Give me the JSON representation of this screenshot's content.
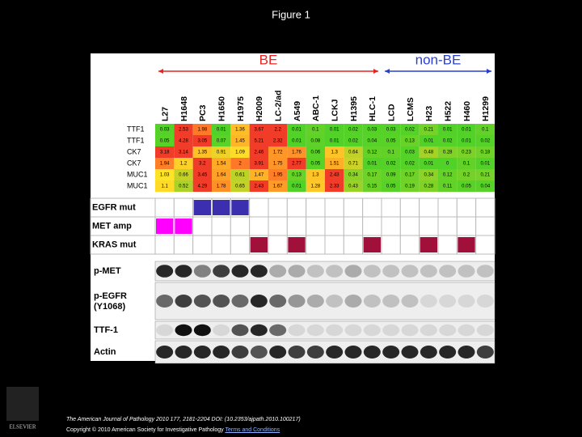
{
  "header": {
    "title": "Figure 1"
  },
  "figure": {
    "groups": [
      {
        "label": "BE",
        "color": "#e8231f",
        "from": 0,
        "to": 11
      },
      {
        "label": "non-BE",
        "color": "#2a3fd0",
        "from": 12,
        "to": 17
      }
    ],
    "columns": [
      "L27",
      "H1648",
      "PC3",
      "H1650",
      "H1975",
      "H2009",
      "LC-2/ad",
      "A549",
      "ABC-1",
      "LCKJ",
      "H1395",
      "HLC-1",
      "LCD",
      "LCMS",
      "H23",
      "H522",
      "H460",
      "H1299"
    ],
    "heatmap": [
      {
        "label": "TTF1",
        "values": [
          0.03,
          2.53,
          1.98,
          0.01,
          1.36,
          3.67,
          2.2,
          0.01,
          0.1,
          0.01,
          0.02,
          0.03,
          0.03,
          0.02,
          0.21,
          0.01,
          0.01,
          0.1
        ]
      },
      {
        "label": "TTF1",
        "values": [
          0.05,
          4.28,
          3.05,
          0.07,
          1.45,
          5.21,
          2.32,
          0.01,
          0.08,
          0.01,
          0.02,
          0.04,
          0.05,
          0.13,
          0.01,
          0.02,
          0.01,
          0.02
        ]
      },
      {
        "label": "CK7",
        "values": [
          3.18,
          3.14,
          1.35,
          0.91,
          1.09,
          2.46,
          1.72,
          1.76,
          0.06,
          1.3,
          0.64,
          0.12,
          0.1,
          0.03,
          0.48,
          0.28,
          0.23,
          0.18
        ]
      },
      {
        "label": "CK7",
        "values": [
          1.94,
          1.2,
          3.2,
          1.54,
          2,
          3.91,
          1.75,
          2.77,
          0.05,
          1.51,
          0.71,
          0.01,
          0.02,
          0.02,
          0.01,
          0,
          0.1,
          0.01
        ]
      },
      {
        "label": "MUC1",
        "values": [
          1.03,
          0.66,
          3.45,
          1.64,
          0.61,
          1.47,
          1.95,
          0.13,
          1.3,
          2.43,
          0.34,
          0.17,
          0.09,
          0.17,
          0.34,
          0.12,
          0.2,
          0.21
        ]
      },
      {
        "label": "MUC1",
        "values": [
          1.1,
          0.52,
          4.29,
          1.78,
          0.65,
          2.43,
          1.67,
          0.01,
          1.28,
          2.33,
          0.43,
          0.15,
          0.05,
          0.19,
          0.28,
          0.11,
          0.05,
          0.04
        ]
      }
    ],
    "mutations": [
      {
        "label": "EGFR mut",
        "color": "#3b2fb0",
        "columns": [
          "PC3",
          "H1650",
          "H1975"
        ]
      },
      {
        "label": "MET  amp",
        "color": "#ff00ff",
        "columns": [
          "L27",
          "H1648"
        ]
      },
      {
        "label": "KRAS mut",
        "color": "#a0103a",
        "columns": [
          "H2009",
          "A549",
          "HLC-1",
          "H23",
          "H460"
        ]
      }
    ],
    "blots": [
      "p-MET",
      "p-EGFR\n(Y1068)",
      "TTF-1",
      "Actin"
    ]
  },
  "footer": {
    "citation": "The American Journal of Pathology 2010 177, 2181-2204 DOI: (10.2353/ajpath.2010.100217)",
    "copyright": "Copyright © 2010 American Society for Investigative Pathology",
    "link": "Terms and Conditions",
    "publisher": "ELSEVIER"
  }
}
